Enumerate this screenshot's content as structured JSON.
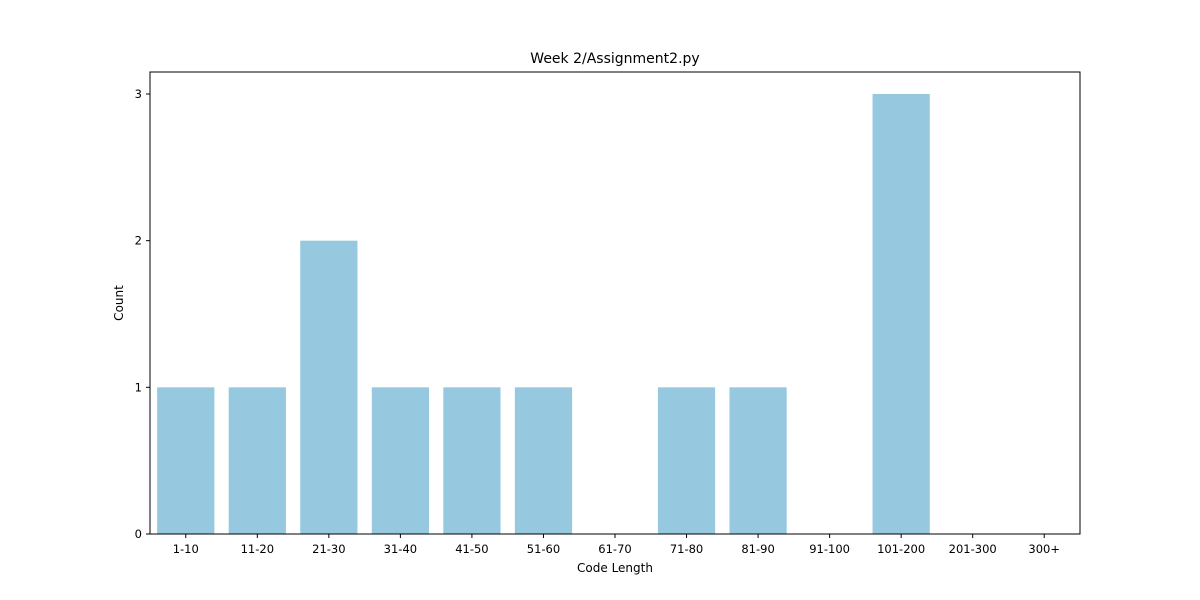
{
  "chart_data": {
    "type": "bar",
    "title": "Week 2/Assignment2.py",
    "xlabel": "Code Length",
    "ylabel": "Count",
    "categories": [
      "1-10",
      "11-20",
      "21-30",
      "31-40",
      "41-50",
      "51-60",
      "61-70",
      "71-80",
      "81-90",
      "91-100",
      "101-200",
      "201-300",
      "300+"
    ],
    "values": [
      1,
      1,
      2,
      1,
      1,
      1,
      0,
      1,
      1,
      0,
      3,
      0,
      0
    ],
    "ylim": [
      0,
      3.15
    ],
    "yticks": [
      0,
      1,
      2,
      3
    ],
    "bar_color": "#96c9df",
    "grid": false,
    "legend": "none"
  }
}
